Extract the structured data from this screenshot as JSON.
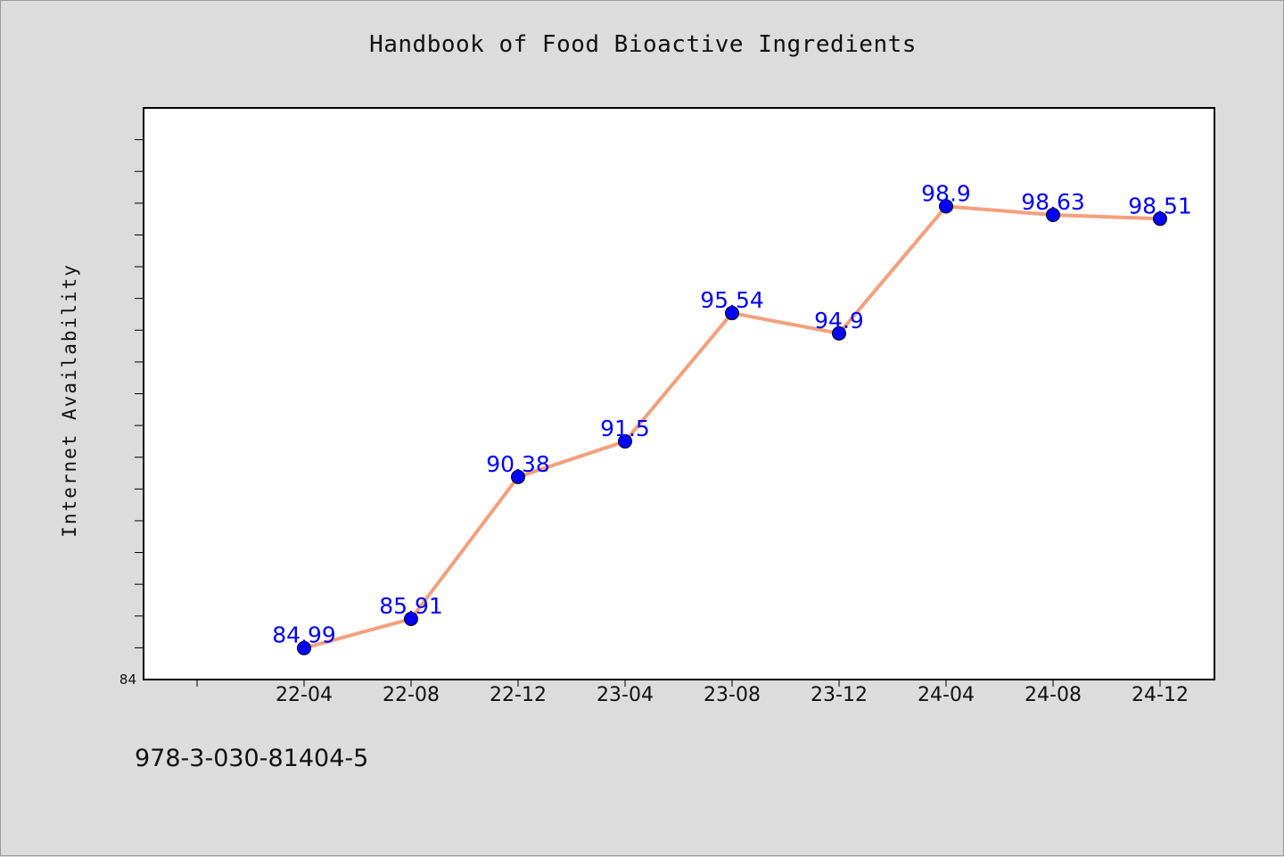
{
  "title": "Handbook of Food Bioactive Ingredients",
  "footer": "978-3-030-81404-5",
  "chart_data": {
    "type": "line",
    "title": "Handbook of Food Bioactive Ingredients",
    "ylabel": "Internet Availability",
    "xlabel": "",
    "categories": [
      "22-04",
      "22-08",
      "22-12",
      "23-04",
      "23-08",
      "23-12",
      "24-04",
      "24-08",
      "24-12"
    ],
    "series": [
      {
        "values": [
          84.99,
          85.91,
          90.38,
          91.5,
          95.54,
          94.9,
          98.9,
          98.63,
          98.51
        ]
      }
    ],
    "data_labels": [
      "84.99",
      "85.91",
      "90.38",
      "91.5",
      "95.54",
      "94.9",
      "98.9",
      "98.63",
      "98.51"
    ],
    "ylim": [
      84,
      102
    ],
    "y_tick_labels": [
      "84"
    ],
    "grid": false,
    "line_color": "#f4a07c",
    "marker_color": "#0000ff",
    "label_color": "#0000ff"
  }
}
